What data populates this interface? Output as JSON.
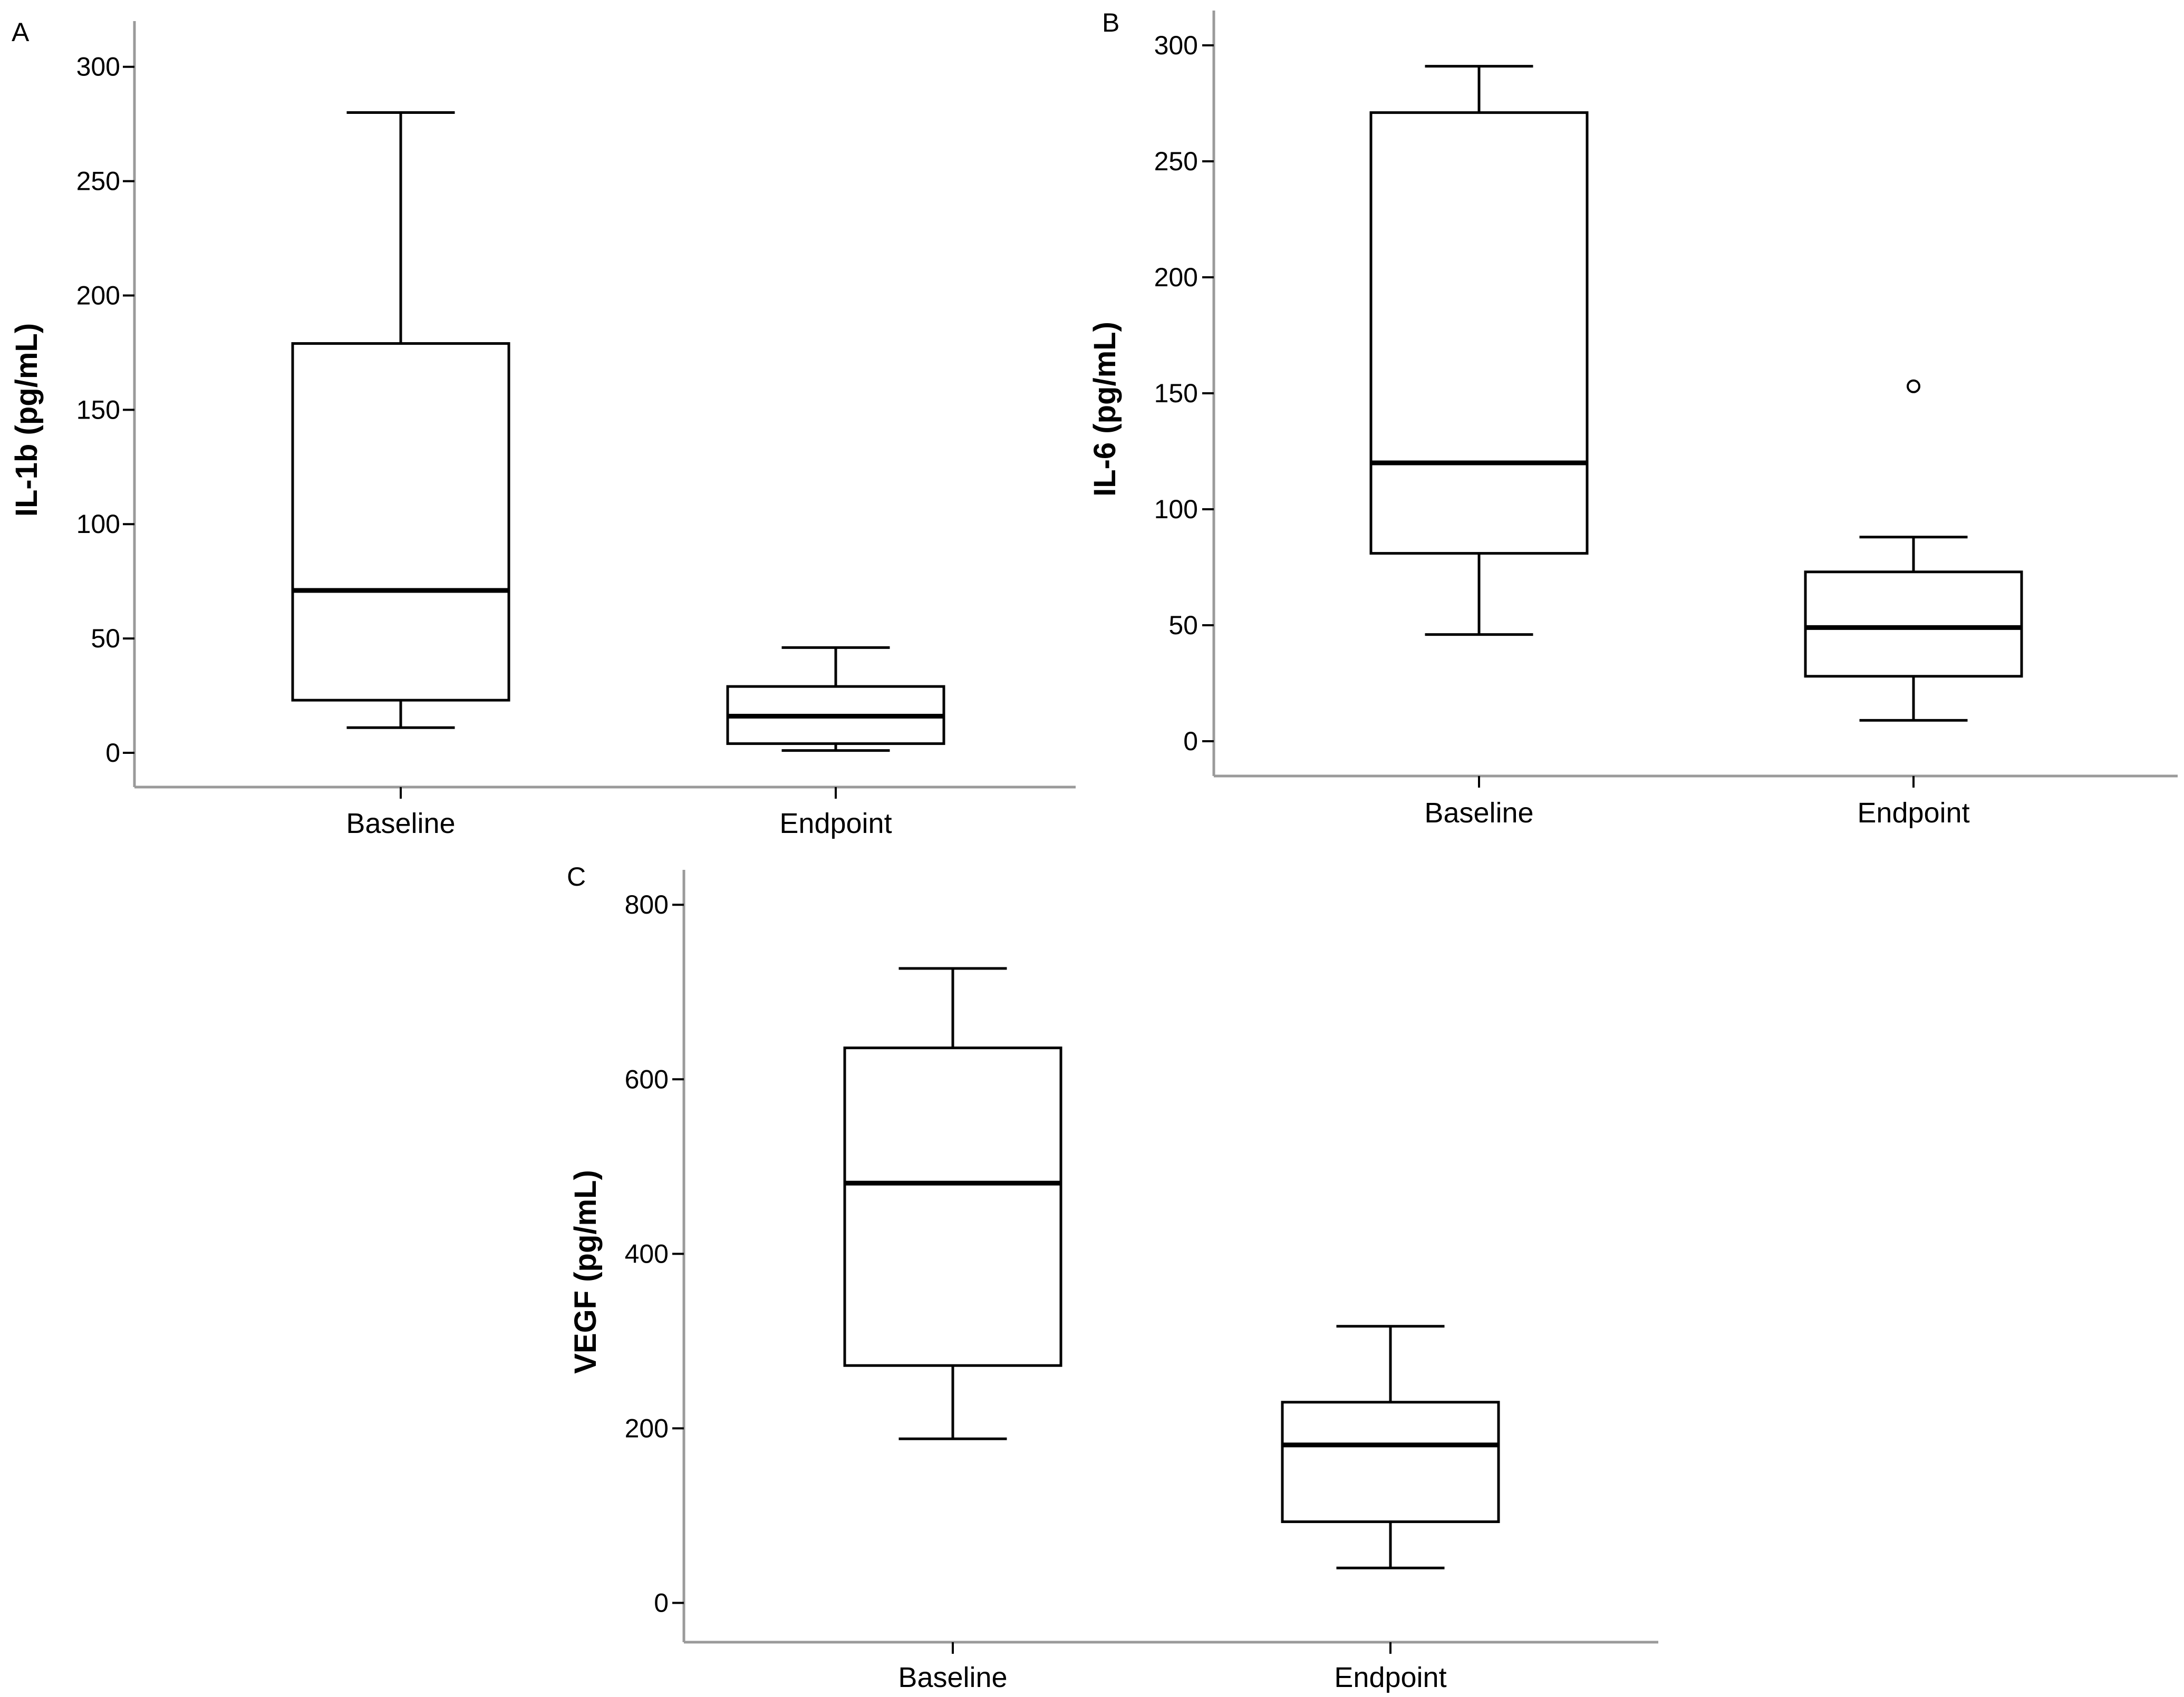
{
  "chart_data": [
    {
      "type": "boxplot",
      "panel_label": "A",
      "ylabel": "IL-1b (pg/mL)",
      "xlabel": "",
      "ylim": [
        -15,
        320
      ],
      "yticks": [
        0,
        50,
        100,
        150,
        200,
        250,
        300
      ],
      "ytick_labels": [
        "0",
        "50",
        "100",
        "150",
        "200",
        "250",
        "300"
      ],
      "categories": [
        "Baseline",
        "Endpoint"
      ],
      "boxes": [
        {
          "category": "Baseline",
          "whisker_low": 11,
          "q1": 23,
          "median": 71,
          "q3": 179,
          "whisker_high": 280,
          "outliers": []
        },
        {
          "category": "Endpoint",
          "whisker_low": 1,
          "q1": 4,
          "median": 16,
          "q3": 29,
          "whisker_high": 46,
          "outliers": []
        }
      ]
    },
    {
      "type": "boxplot",
      "panel_label": "B",
      "ylabel": "IL-6 (pg/mL)",
      "xlabel": "",
      "ylim": [
        -15,
        315
      ],
      "yticks": [
        0,
        50,
        100,
        150,
        200,
        250,
        300
      ],
      "ytick_labels": [
        "0",
        "50",
        "100",
        "150",
        "200",
        "250",
        "300"
      ],
      "categories": [
        "Baseline",
        "Endpoint"
      ],
      "boxes": [
        {
          "category": "Baseline",
          "whisker_low": 46,
          "q1": 81,
          "median": 120,
          "q3": 271,
          "whisker_high": 291,
          "outliers": []
        },
        {
          "category": "Endpoint",
          "whisker_low": 9,
          "q1": 28,
          "median": 49,
          "q3": 73,
          "whisker_high": 88,
          "outliers": [
            153
          ]
        }
      ]
    },
    {
      "type": "boxplot",
      "panel_label": "C",
      "ylabel": "VEGF (pg/mL)",
      "xlabel": "",
      "ylim": [
        -45,
        840
      ],
      "yticks": [
        0,
        200,
        400,
        600,
        800
      ],
      "ytick_labels": [
        "0",
        "200",
        "400",
        "600",
        "800"
      ],
      "categories": [
        "Baseline",
        "Endpoint"
      ],
      "boxes": [
        {
          "category": "Baseline",
          "whisker_low": 188,
          "q1": 272,
          "median": 481,
          "q3": 636,
          "whisker_high": 727,
          "outliers": []
        },
        {
          "category": "Endpoint",
          "whisker_low": 40,
          "q1": 93,
          "median": 181,
          "q3": 230,
          "whisker_high": 317,
          "outliers": []
        }
      ]
    }
  ]
}
